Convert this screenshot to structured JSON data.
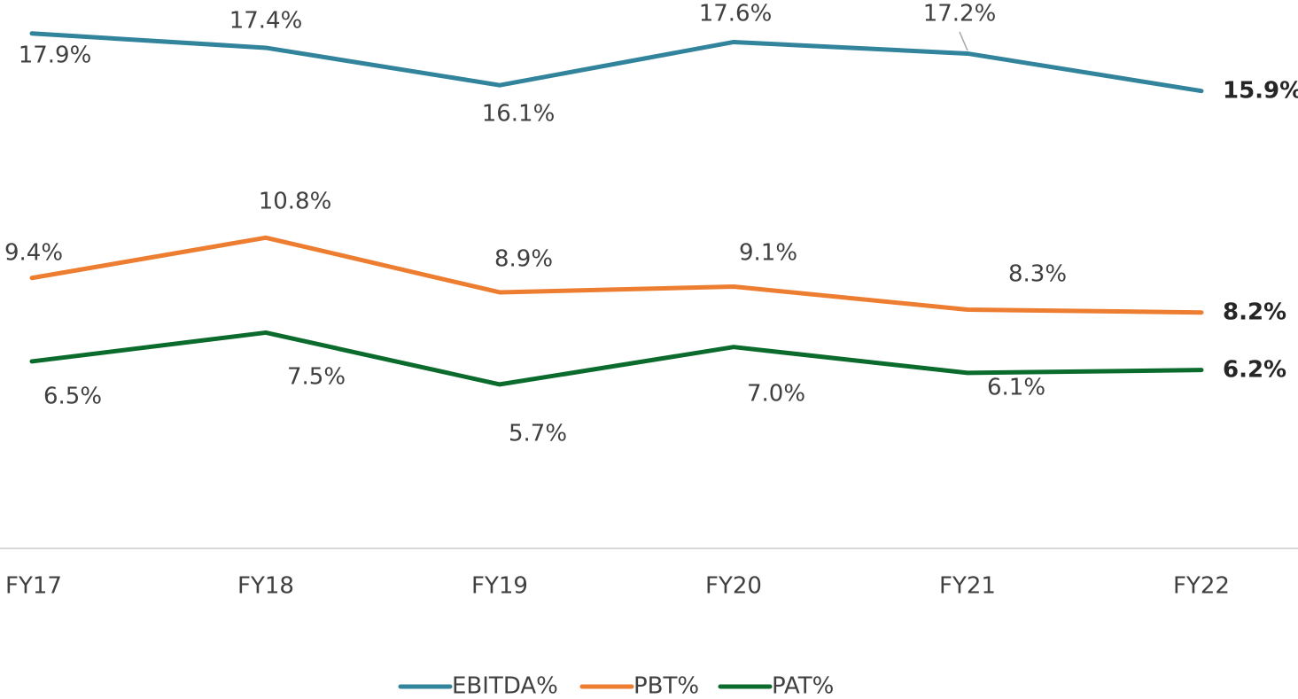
{
  "chart_data": {
    "type": "line",
    "categories": [
      "FY17",
      "FY18",
      "FY19",
      "FY20",
      "FY21",
      "FY22"
    ],
    "ylim": [
      0,
      19
    ],
    "series": [
      {
        "name": "EBITDA%",
        "color": "#31849b",
        "values": [
          17.9,
          17.4,
          16.1,
          17.6,
          17.2,
          15.9
        ],
        "value_labels": [
          "17.9%",
          "17.4%",
          "16.1%",
          "17.6%",
          "17.2%",
          "15.9%"
        ]
      },
      {
        "name": "PBT%",
        "color": "#ed7d31",
        "values": [
          9.4,
          10.8,
          8.9,
          9.1,
          8.3,
          8.2
        ],
        "value_labels": [
          "9.4%",
          "10.8%",
          "8.9%",
          "9.1%",
          "8.3%",
          "8.2%"
        ]
      },
      {
        "name": "PAT%",
        "color": "#0b6b2c",
        "values": [
          6.5,
          7.5,
          5.7,
          7.0,
          6.1,
          6.2
        ],
        "value_labels": [
          "6.5%",
          "7.5%",
          "5.7%",
          "7.0%",
          "6.1%",
          "6.2%"
        ]
      }
    ],
    "legend": "bottom"
  }
}
